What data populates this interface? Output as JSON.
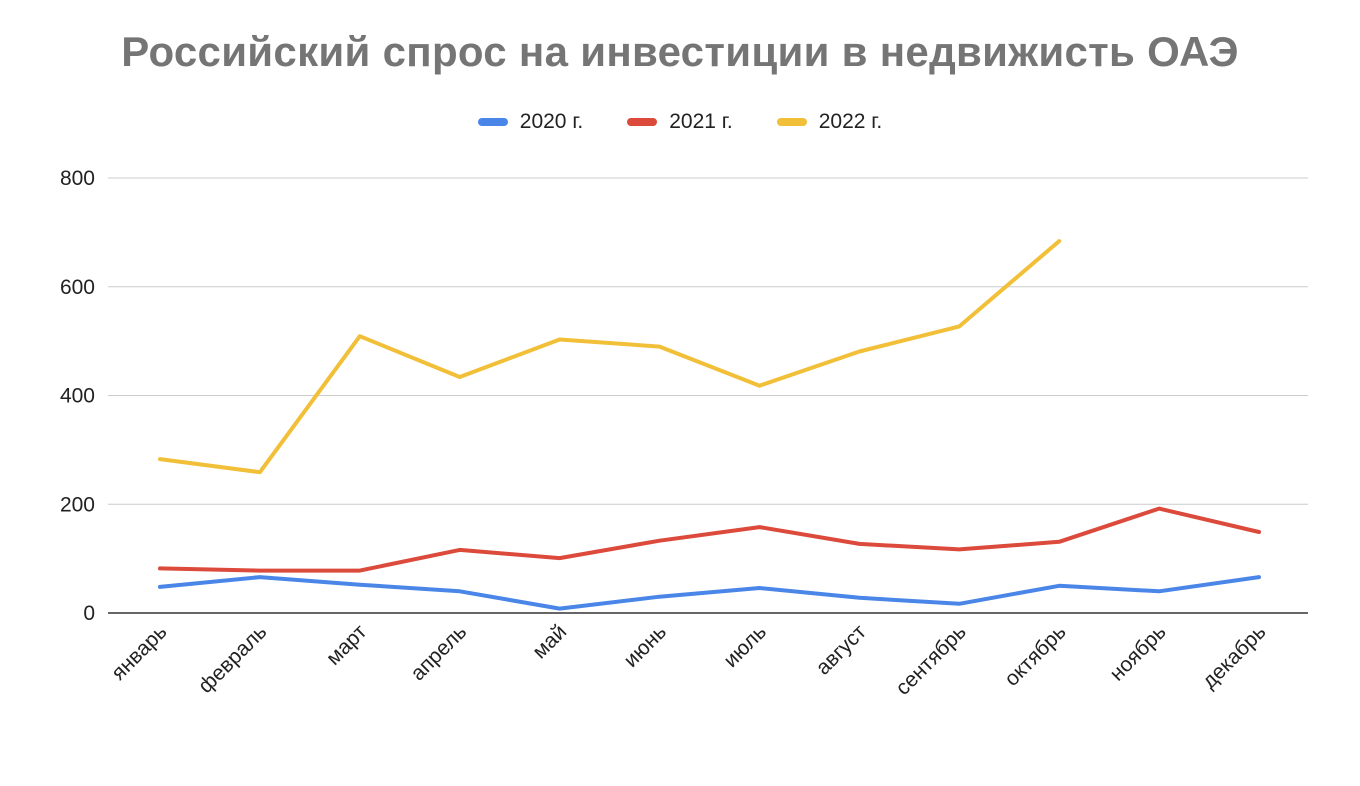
{
  "chart_data": {
    "type": "line",
    "title": "Российский спрос на инвестиции в недвижисть ОАЭ",
    "categories": [
      "январь",
      "февраль",
      "март",
      "апрель",
      "май",
      "июнь",
      "июль",
      "август",
      "сентябрь",
      "октябрь",
      "ноябрь",
      "декабрь"
    ],
    "series": [
      {
        "name": "2020 г.",
        "color": "#4a86e8",
        "values": [
          48,
          66,
          52,
          40,
          8,
          30,
          46,
          28,
          17,
          50,
          40,
          66
        ]
      },
      {
        "name": "2021 г.",
        "color": "#db4a3b",
        "values": [
          82,
          78,
          78,
          116,
          101,
          133,
          158,
          127,
          117,
          131,
          192,
          149
        ]
      },
      {
        "name": "2022 г.",
        "color": "#f1bf38",
        "values": [
          283,
          259,
          509,
          434,
          503,
          490,
          418,
          481,
          527,
          684,
          null,
          null
        ]
      }
    ],
    "ylim": [
      0,
      800
    ],
    "yticks": [
      0,
      200,
      400,
      600,
      800
    ],
    "grid": true,
    "legend_position": "top"
  }
}
